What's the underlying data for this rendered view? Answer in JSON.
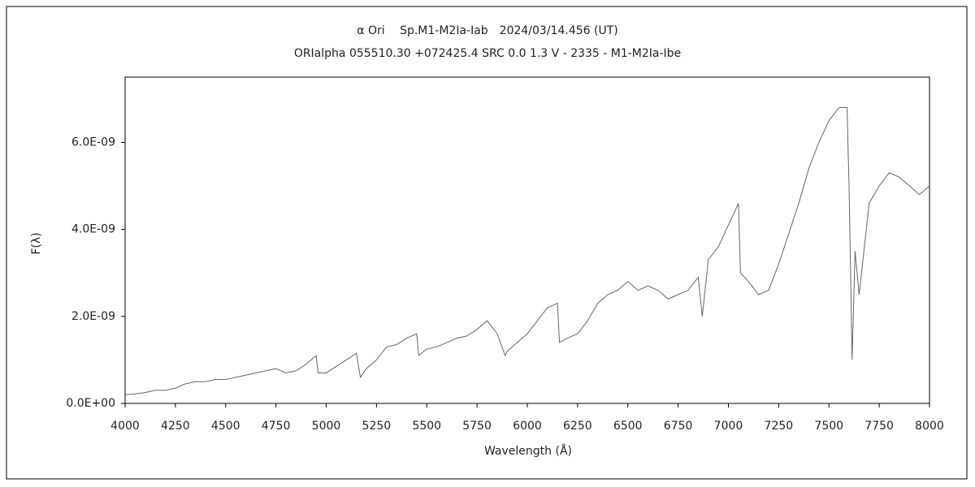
{
  "chart_data": {
    "type": "line",
    "title": "α Ori　 Sp.M1-M2Ia-Iab　2024/03/14.456 (UT)",
    "subtitle": "ORIalpha 055510.30 +072425.4 SRC 0.0 1.3 V - 2335 - M1-M2Ia-Ibe",
    "x_label": "Wavelength (Å)",
    "y_label": "F(λ)",
    "color": "#666666",
    "xlim": [
      4000,
      8000
    ],
    "ylim": [
      0,
      7.5e-09
    ],
    "xticks": [
      4000,
      4250,
      4500,
      4750,
      5000,
      5250,
      5500,
      5750,
      6000,
      6250,
      6500,
      6750,
      7000,
      7250,
      7500,
      7750,
      8000
    ],
    "yticks": [
      {
        "value": 0,
        "label": "0.0E+00"
      },
      {
        "value": 2e-09,
        "label": "2.0E-09"
      },
      {
        "value": 4e-09,
        "label": "4.0E-09"
      },
      {
        "value": 6e-09,
        "label": "6.0E-09"
      }
    ],
    "x": [
      4000,
      4050,
      4100,
      4150,
      4200,
      4250,
      4300,
      4350,
      4400,
      4450,
      4500,
      4550,
      4600,
      4650,
      4700,
      4750,
      4800,
      4850,
      4900,
      4950,
      4960,
      5000,
      5050,
      5100,
      5150,
      5170,
      5200,
      5250,
      5300,
      5350,
      5400,
      5450,
      5460,
      5500,
      5550,
      5600,
      5650,
      5700,
      5750,
      5800,
      5850,
      5890,
      5900,
      5950,
      6000,
      6050,
      6100,
      6150,
      6160,
      6200,
      6250,
      6300,
      6350,
      6400,
      6450,
      6500,
      6550,
      6600,
      6650,
      6700,
      6750,
      6800,
      6850,
      6870,
      6900,
      6950,
      7000,
      7050,
      7060,
      7100,
      7150,
      7200,
      7250,
      7300,
      7350,
      7400,
      7450,
      7500,
      7550,
      7590,
      7600,
      7615,
      7630,
      7650,
      7700,
      7750,
      7800,
      7850,
      7900,
      7950,
      8000
    ],
    "values": [
      2e-10,
      2.2e-10,
      2.5e-10,
      3e-10,
      3e-10,
      3.5e-10,
      4.5e-10,
      5e-10,
      5e-10,
      5.5e-10,
      5.5e-10,
      6e-10,
      6.5e-10,
      7e-10,
      7.5e-10,
      8e-10,
      7e-10,
      7.5e-10,
      9e-10,
      1.1e-09,
      7e-10,
      7e-10,
      8.5e-10,
      1e-09,
      1.15e-09,
      6e-10,
      8e-10,
      1e-09,
      1.3e-09,
      1.35e-09,
      1.5e-09,
      1.6e-09,
      1.1e-09,
      1.25e-09,
      1.3e-09,
      1.4e-09,
      1.5e-09,
      1.55e-09,
      1.7e-09,
      1.9e-09,
      1.6e-09,
      1.1e-09,
      1.2e-09,
      1.4e-09,
      1.6e-09,
      1.9e-09,
      2.2e-09,
      2.3e-09,
      1.4e-09,
      1.5e-09,
      1.6e-09,
      1.9e-09,
      2.3e-09,
      2.5e-09,
      2.6e-09,
      2.8e-09,
      2.6e-09,
      2.7e-09,
      2.6e-09,
      2.4e-09,
      2.5e-09,
      2.6e-09,
      2.9e-09,
      2e-09,
      3.3e-09,
      3.6e-09,
      4.1e-09,
      4.6e-09,
      3e-09,
      2.8e-09,
      2.5e-09,
      2.6e-09,
      3.2e-09,
      3.9e-09,
      4.6e-09,
      5.4e-09,
      6e-09,
      6.5e-09,
      6.8e-09,
      6.8e-09,
      5e-09,
      1e-09,
      3.5e-09,
      2.5e-09,
      4.6e-09,
      5e-09,
      5.3e-09,
      5.2e-09,
      5e-09,
      4.8e-09,
      5e-09
    ]
  }
}
